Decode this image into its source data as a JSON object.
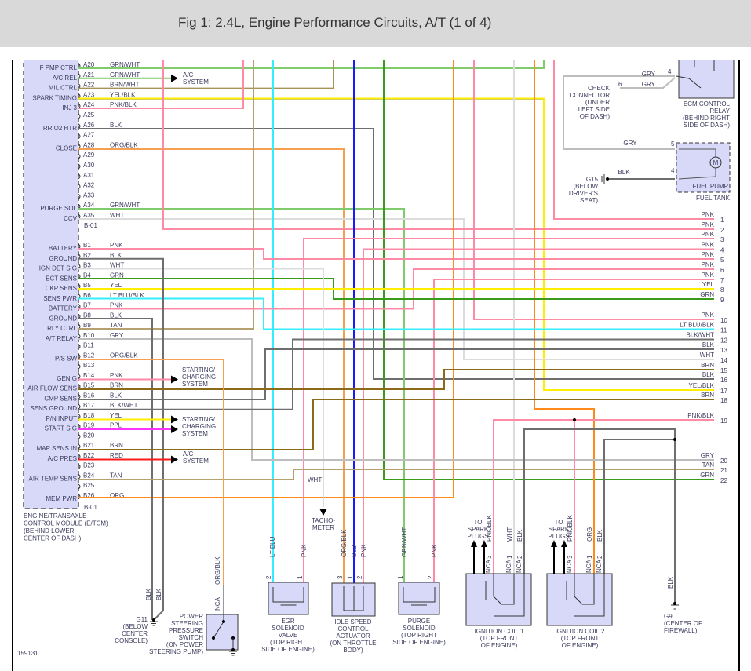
{
  "title": "Fig 1: 2.4L, Engine Performance Circuits, A/T (1 of 4)",
  "figure_id": "159131",
  "wire_colors": {
    "PNK": "#ff8aa6",
    "GRNWHT": "#80cc6c",
    "GRN": "#3a9a1a",
    "BRN": "#8b6a1a",
    "BRNWHT": "#a8925a",
    "TAN": "#b5a070",
    "YEL": "#ffee00",
    "BLK": "#6e6e6e",
    "WHT": "#dcdcdc",
    "GRY": "#bdbdbd",
    "LTBLU": "#33eeff",
    "BLU": "#1a1aff",
    "ORG": "#ff8a1a",
    "ORGBLK": "#f5a050",
    "PPL": "#ff33ff",
    "RED": "#ff1a1a",
    "module_fill": "#d8d8f8"
  },
  "ecm": {
    "name_lines": [
      "ENGINE/TRANSAXLE",
      "CONTROL MODULE (E/TCM)",
      "(BEHIND LOWER",
      "CENTER OF DASH)"
    ],
    "connector_a_id": "B-01",
    "connector_b_id": "B-01",
    "pins_a": [
      {
        "pin": "A20",
        "label": "F PMP CTRL",
        "wire": "GRN/WHT"
      },
      {
        "pin": "A21",
        "label": "A/C REL",
        "wire": "GRN/WHT"
      },
      {
        "pin": "A22",
        "label": "MIL CTRL",
        "wire": "BRN/WHT"
      },
      {
        "pin": "A23",
        "label": "SPARK TIMING",
        "wire": "YEL/BLK"
      },
      {
        "pin": "A24",
        "label": "INJ 3",
        "wire": "PNK/BLK"
      },
      {
        "pin": "A25",
        "label": "",
        "wire": ""
      },
      {
        "pin": "A26",
        "label": "RR O2 HTR",
        "wire": "BLK"
      },
      {
        "pin": "A27",
        "label": "",
        "wire": ""
      },
      {
        "pin": "A28",
        "label": "CLOSE",
        "wire": "ORG/BLK"
      },
      {
        "pin": "A29",
        "label": "",
        "wire": ""
      },
      {
        "pin": "A30",
        "label": "",
        "wire": ""
      },
      {
        "pin": "A31",
        "label": "",
        "wire": ""
      },
      {
        "pin": "A32",
        "label": "",
        "wire": ""
      },
      {
        "pin": "A33",
        "label": "",
        "wire": ""
      },
      {
        "pin": "A34",
        "label": "PURGE SOL",
        "wire": "GRN/WHT"
      },
      {
        "pin": "A35",
        "label": "CCV",
        "wire": "WHT"
      }
    ],
    "pins_b": [
      {
        "pin": "B1",
        "label": "BATTERY",
        "wire": "PNK"
      },
      {
        "pin": "B2",
        "label": "GROUND",
        "wire": "BLK"
      },
      {
        "pin": "B3",
        "label": "IGN DET SIG",
        "wire": "WHT"
      },
      {
        "pin": "B4",
        "label": "ECT SENS",
        "wire": "GRN"
      },
      {
        "pin": "B5",
        "label": "CKP SENS",
        "wire": "YEL"
      },
      {
        "pin": "B6",
        "label": "SENS PWR",
        "wire": "LT BLU/BLK"
      },
      {
        "pin": "B7",
        "label": "BATTERY",
        "wire": "PNK"
      },
      {
        "pin": "B8",
        "label": "GROUND",
        "wire": "BLK"
      },
      {
        "pin": "B9",
        "label": "RLY CTRL",
        "wire": "TAN"
      },
      {
        "pin": "B10",
        "label": "A/T RELAY",
        "wire": "GRY"
      },
      {
        "pin": "B11",
        "label": "",
        "wire": ""
      },
      {
        "pin": "B12",
        "label": "P/S SW",
        "wire": "ORG/BLK"
      },
      {
        "pin": "B13",
        "label": "",
        "wire": ""
      },
      {
        "pin": "B14",
        "label": "GEN G",
        "wire": "PNK"
      },
      {
        "pin": "B15",
        "label": "AIR FLOW SENS",
        "wire": "BRN"
      },
      {
        "pin": "B16",
        "label": "CMP SENS",
        "wire": "BLK"
      },
      {
        "pin": "B17",
        "label": "SENS GROUND",
        "wire": "BLK/WHT"
      },
      {
        "pin": "B18",
        "label": "P/N INPUT",
        "wire": "YEL"
      },
      {
        "pin": "B19",
        "label": "START SIG",
        "wire": "PPL"
      },
      {
        "pin": "B20",
        "label": "",
        "wire": ""
      },
      {
        "pin": "B21",
        "label": "MAP SENS IN",
        "wire": "BRN"
      },
      {
        "pin": "B22",
        "label": "A/C PRES",
        "wire": "RED"
      },
      {
        "pin": "B23",
        "label": "",
        "wire": ""
      },
      {
        "pin": "B24",
        "label": "AIR TEMP SENS",
        "wire": "TAN"
      },
      {
        "pin": "B25",
        "label": "",
        "wire": ""
      },
      {
        "pin": "B26",
        "label": "MEM PWR",
        "wire": "ORG"
      }
    ]
  },
  "destinations": {
    "ac_system_a21": [
      "A/C",
      "SYSTEM"
    ],
    "starting_charging_b14": [
      "STARTING/",
      "CHARGING",
      "SYSTEM"
    ],
    "starting_charging_b18": [
      "STARTING/",
      "CHARGING",
      "SYSTEM"
    ],
    "ac_system_b22": [
      "A/C",
      "SYSTEM"
    ],
    "tachometer": [
      "TACHO-",
      "METER"
    ],
    "wht_label": "WHT"
  },
  "harness_right": [
    {
      "num": "1",
      "wire": "PNK"
    },
    {
      "num": "2",
      "wire": "PNK"
    },
    {
      "num": "3",
      "wire": "PNK"
    },
    {
      "num": "4",
      "wire": "PNK"
    },
    {
      "num": "5",
      "wire": "PNK"
    },
    {
      "num": "6",
      "wire": "PNK"
    },
    {
      "num": "7",
      "wire": "PNK"
    },
    {
      "num": "8",
      "wire": "YEL"
    },
    {
      "num": "9",
      "wire": "GRN"
    },
    {
      "num": "10",
      "wire": "PNK"
    },
    {
      "num": "11",
      "wire": "LT BLU/BLK"
    },
    {
      "num": "12",
      "wire": "BLK/WHT"
    },
    {
      "num": "13",
      "wire": "BLK"
    },
    {
      "num": "14",
      "wire": "WHT"
    },
    {
      "num": "15",
      "wire": "BRN"
    },
    {
      "num": "16",
      "wire": "BLK"
    },
    {
      "num": "17",
      "wire": "YEL/BLK"
    },
    {
      "num": "18",
      "wire": "BRN"
    },
    {
      "num": "19",
      "wire": "PNK/BLK"
    },
    {
      "num": "20",
      "wire": "GRY"
    },
    {
      "num": "21",
      "wire": "TAN"
    },
    {
      "num": "22",
      "wire": "GRN"
    }
  ],
  "top_right": {
    "relay_pin": "4",
    "relay_wire": "GRY",
    "check_pin": "6",
    "check_wire": "GRY",
    "check_connector": [
      "CHECK",
      "CONNECTOR",
      "(UNDER",
      "LEFT SIDE",
      "OF DASH)"
    ],
    "ecm_relay": [
      "ECM CONTROL",
      "RELAY",
      "(BEHIND RIGHT",
      "SIDE OF DASH)"
    ],
    "pump_pin_5": "5",
    "pump_wire_5": "GRY",
    "pump_pin_4": "4",
    "pump_wire_4": "BLK",
    "g15": [
      "G15",
      "(BELOW",
      "DRIVER'S",
      "SEAT)"
    ],
    "fuel_pump": "FUEL PUMP",
    "motor_symbol": "M",
    "fuel_tank": "FUEL TANK"
  },
  "components": {
    "g11": {
      "wires": [
        "BLK",
        "BLK"
      ],
      "label": [
        "G11",
        "(BELOW",
        "CENTER",
        "CONSOLE)"
      ]
    },
    "ps_switch": {
      "wire": "ORG/BLK",
      "pin": "NCA",
      "label": [
        "POWER",
        "STEERING",
        "PRESSURE",
        "SWITCH",
        "(ON POWER",
        "STEERING PUMP)"
      ]
    },
    "egr": {
      "pins": [
        {
          "num": "2",
          "wire": "LT BLU"
        },
        {
          "num": "1",
          "wire": "PNK"
        }
      ],
      "label": [
        "EGR",
        "SOLENOID",
        "VALVE",
        "(TOP RIGHT",
        "SIDE OF ENGINE)"
      ]
    },
    "iac": {
      "pins": [
        {
          "num": "3",
          "wire": "ORG/BLK"
        },
        {
          "num": "1",
          "wire": "BLU"
        },
        {
          "num": "2",
          "wire": "PNK"
        }
      ],
      "label": [
        "IDLE SPEED",
        "CONTROL",
        "ACTUATOR",
        "(ON THROTTLE",
        "BODY)"
      ]
    },
    "purge": {
      "pins": [
        {
          "num": "1",
          "wire": "GRN/WHT"
        },
        {
          "num": "2",
          "wire": "PNK"
        }
      ],
      "label": [
        "PURGE",
        "SOLENOID",
        "(TOP RIGHT",
        "SIDE OF ENGINE)"
      ]
    },
    "coil1": {
      "to_spark": [
        "TO",
        "SPARK",
        "PLUGS"
      ],
      "pins": [
        {
          "num": "3",
          "wire": "PNK/BLK",
          "nca": "NCA"
        },
        {
          "num": "1",
          "wire": "WHT",
          "nca": "NCA"
        },
        {
          "num": "2",
          "wire": "BLK",
          "nca": "NCA"
        }
      ],
      "label": [
        "IGNITION COIL 1",
        "(TOP FRONT",
        "OF ENGINE)"
      ]
    },
    "coil2": {
      "to_spark": [
        "TO",
        "SPARK",
        "PLUGS"
      ],
      "pins": [
        {
          "num": "3",
          "wire": "PNK/BLK",
          "nca": "NCA"
        },
        {
          "num": "1",
          "wire": "ORG",
          "nca": "NCA"
        },
        {
          "num": "2",
          "wire": "BLK",
          "nca": "NCA"
        }
      ],
      "label": [
        "IGNITION COIL 2",
        "(TOP FRONT",
        "OF ENGINE)"
      ]
    },
    "g9": {
      "wire": "BLK",
      "label": [
        "G9",
        "(CENTER OF",
        "FIREWALL)"
      ]
    }
  }
}
